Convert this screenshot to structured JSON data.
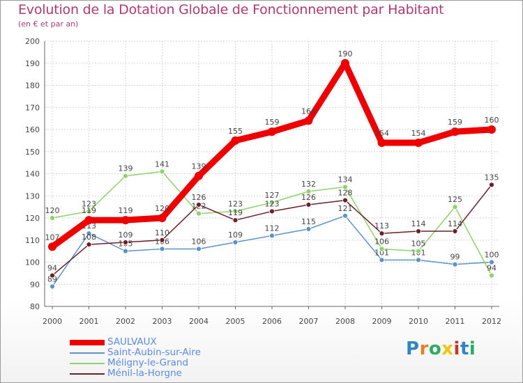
{
  "title": "Evolution de la Dotation Globale de Fonctionnement par Habitant",
  "subtitle": "(en € et par an)",
  "logo_text": "Proxiti",
  "chart_data": {
    "type": "line",
    "title": "Evolution de la Dotation Globale de Fonctionnement par Habitant",
    "subtitle": "(en € et par an)",
    "xlabel": "",
    "ylabel": "",
    "ylim": [
      80,
      200
    ],
    "yticks": [
      80,
      90,
      100,
      110,
      120,
      130,
      140,
      150,
      160,
      170,
      180,
      190,
      200
    ],
    "grid": true,
    "legend_position": "bottom-left",
    "categories": [
      "2000",
      "2001",
      "2002",
      "2003",
      "2004",
      "2005",
      "2006",
      "2007",
      "2008",
      "2009",
      "2010",
      "2011",
      "2012"
    ],
    "series": [
      {
        "name": "Saint-Aubin-sur-Aire",
        "color": "#5b93c7",
        "values": [
          89,
          113,
          105,
          106,
          106,
          109,
          112,
          115,
          121,
          101,
          101,
          99,
          100
        ]
      },
      {
        "name": "Méligny-le-Grand",
        "color": "#8fd16a",
        "values": [
          120,
          123,
          139,
          141,
          122,
          123,
          127,
          132,
          134,
          106,
          105,
          125,
          94
        ]
      },
      {
        "name": "Ménil-la-Horgne",
        "color": "#6b1f2a",
        "values": [
          94,
          108,
          109,
          110,
          126,
          119,
          123,
          126,
          128,
          113,
          114,
          114,
          135
        ]
      },
      {
        "name": "SAULVAUX",
        "color": "#ee0000",
        "values": [
          107,
          119,
          119,
          120,
          139,
          155,
          159,
          164,
          190,
          154,
          154,
          159,
          160
        ]
      }
    ]
  }
}
